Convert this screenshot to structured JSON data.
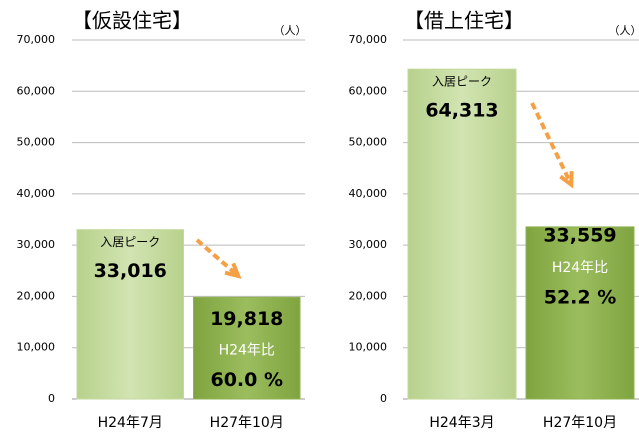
{
  "chart_data": [
    {
      "type": "bar",
      "title": "【仮設住宅】",
      "unit": "（人）",
      "categories": [
        "H24年7月",
        "H27年10月"
      ],
      "values": [
        33016,
        19818
      ],
      "value_labels": [
        "33,016",
        "19,818"
      ],
      "colors": [
        "#c3d99c",
        "#8fb352"
      ],
      "peak_label": "入居ピーク",
      "ratio_label": "H24年比",
      "ratio_text": "60.0 %",
      "ylim": [
        0,
        70000
      ],
      "yticks": [
        0,
        {
          "value": 10000,
          "label": "10,000"
        },
        {
          "value": 20000,
          "label": "20,000"
        },
        {
          "value": 30000,
          "label": "30,000"
        },
        {
          "value": 40000,
          "label": "40,000"
        },
        {
          "value": 50000,
          "label": "50,000"
        },
        {
          "value": 60000,
          "label": "60,000"
        },
        {
          "value": 70000,
          "label": "70,000"
        }
      ],
      "grid": true
    },
    {
      "type": "bar",
      "title": "【借上住宅】",
      "unit": "（人）",
      "categories": [
        "H24年3月",
        "H27年10月"
      ],
      "values": [
        64313,
        33559
      ],
      "value_labels": [
        "64,313",
        "33,559"
      ],
      "colors": [
        "#c3d99c",
        "#8fb352"
      ],
      "peak_label": "入居ピーク",
      "ratio_label": "H24年比",
      "ratio_text": "52.2 %",
      "ylim": [
        0,
        70000
      ],
      "yticks": [
        0,
        {
          "value": 10000,
          "label": "10,000"
        },
        {
          "value": 20000,
          "label": "20,000"
        },
        {
          "value": 30000,
          "label": "30,000"
        },
        {
          "value": 40000,
          "label": "40,000"
        },
        {
          "value": 50000,
          "label": "50,000"
        },
        {
          "value": 60000,
          "label": "60,000"
        },
        {
          "value": 70000,
          "label": "70,000"
        }
      ],
      "grid": true
    }
  ]
}
